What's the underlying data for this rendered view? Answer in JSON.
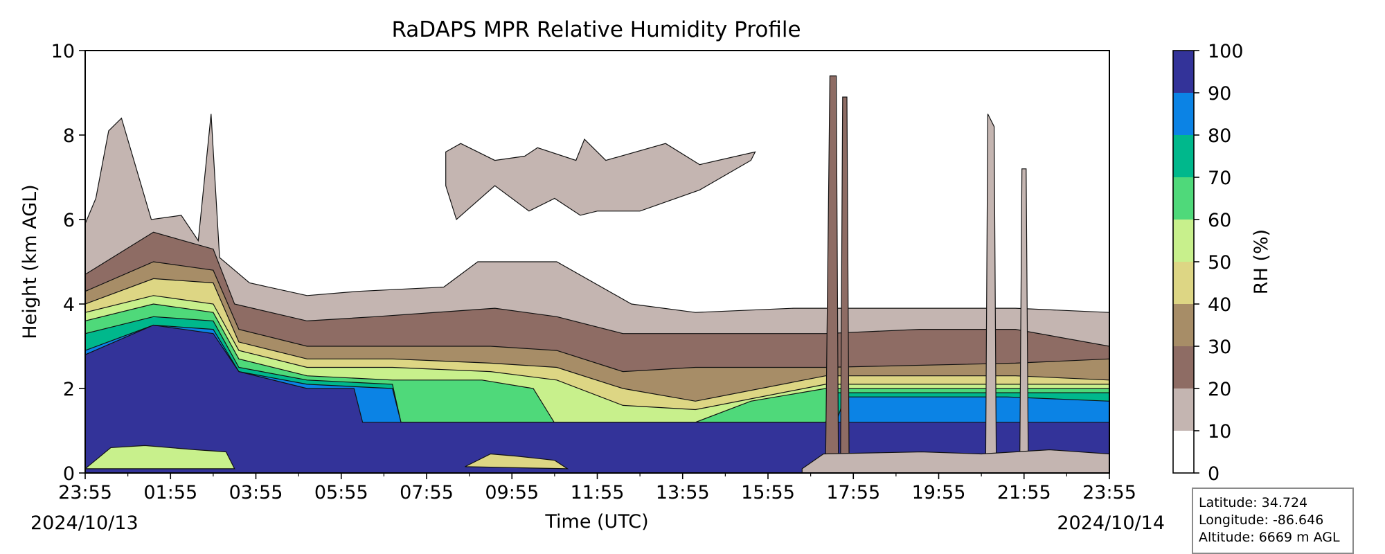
{
  "chart_data": {
    "type": "contour",
    "title": "RaDAPS MPR Relative Humidity Profile",
    "xlabel": "Time (UTC)",
    "ylabel": "Height (km AGL)",
    "x_ticks": [
      "23:55",
      "01:55",
      "03:55",
      "05:55",
      "07:55",
      "09:55",
      "11:55",
      "13:55",
      "15:55",
      "17:55",
      "19:55",
      "21:55",
      "23:55"
    ],
    "start_date": "2024/10/13",
    "end_date": "2024/10/14",
    "y_ticks": [
      "0",
      "2",
      "4",
      "6",
      "8",
      "10"
    ],
    "ylim": [
      0,
      10
    ],
    "colorbar": {
      "label": "RH (%)",
      "ticks": [
        "0",
        "10",
        "20",
        "30",
        "40",
        "50",
        "60",
        "70",
        "80",
        "90",
        "100"
      ],
      "levels": [
        0,
        10,
        20,
        30,
        40,
        50,
        60,
        70,
        80,
        90,
        100
      ],
      "colors": [
        "#ffffff",
        "#c4b5b1",
        "#8e6c64",
        "#a78d67",
        "#ddd684",
        "#c8f08c",
        "#4fd97a",
        "#00b88c",
        "#0b83e5",
        "#333399"
      ]
    },
    "contour_profiles": [
      {
        "min_rh": 10,
        "color": "#c4b5b1",
        "top_km": [
          [
            0,
            5.9
          ],
          [
            0.25,
            6.5
          ],
          [
            0.55,
            8.1
          ],
          [
            0.85,
            8.4
          ],
          [
            1.55,
            6.0
          ],
          [
            2.25,
            6.1
          ],
          [
            2.65,
            5.5
          ],
          [
            2.95,
            8.5
          ],
          [
            3.15,
            5.1
          ],
          [
            3.85,
            4.5
          ],
          [
            5.2,
            4.2
          ],
          [
            6.4,
            4.3
          ],
          [
            8.4,
            4.4
          ],
          [
            9.2,
            5.0
          ],
          [
            11.05,
            5.0
          ],
          [
            12.8,
            4.0
          ],
          [
            14.3,
            3.8
          ],
          [
            16.6,
            3.9
          ],
          [
            17.35,
            3.9
          ],
          [
            21.8,
            3.9
          ],
          [
            24,
            3.8
          ]
        ]
      },
      {
        "min_rh": 20,
        "color": "#8e6c64",
        "top_km": [
          [
            0,
            4.7
          ],
          [
            1.6,
            5.7
          ],
          [
            3.0,
            5.3
          ],
          [
            3.5,
            4.0
          ],
          [
            5.2,
            3.6
          ],
          [
            6.8,
            3.7
          ],
          [
            9.6,
            3.9
          ],
          [
            11.05,
            3.7
          ],
          [
            12.6,
            3.3
          ],
          [
            14.3,
            3.3
          ],
          [
            17.35,
            3.3
          ],
          [
            19.55,
            3.4
          ],
          [
            21.8,
            3.4
          ],
          [
            24,
            3.0
          ]
        ]
      },
      {
        "min_rh": 30,
        "color": "#a78d67",
        "top_km": [
          [
            0,
            4.3
          ],
          [
            1.6,
            5.0
          ],
          [
            3.0,
            4.8
          ],
          [
            3.6,
            3.4
          ],
          [
            5.2,
            3.0
          ],
          [
            7.2,
            3.0
          ],
          [
            9.5,
            3.0
          ],
          [
            11.05,
            2.9
          ],
          [
            12.6,
            2.4
          ],
          [
            14.3,
            2.5
          ],
          [
            17.35,
            2.5
          ],
          [
            21.8,
            2.6
          ],
          [
            24,
            2.7
          ]
        ]
      },
      {
        "min_rh": 40,
        "color": "#ddd684",
        "top_km": [
          [
            0,
            4.0
          ],
          [
            1.6,
            4.6
          ],
          [
            3.0,
            4.5
          ],
          [
            3.6,
            3.1
          ],
          [
            5.2,
            2.7
          ],
          [
            7.2,
            2.7
          ],
          [
            9.5,
            2.6
          ],
          [
            11.05,
            2.5
          ],
          [
            12.6,
            2.0
          ],
          [
            14.3,
            1.7
          ],
          [
            17.35,
            2.3
          ],
          [
            21.8,
            2.3
          ],
          [
            24,
            2.2
          ]
        ]
      },
      {
        "min_rh": 50,
        "color": "#c8f08c",
        "top_km": [
          [
            0,
            3.8
          ],
          [
            1.6,
            4.2
          ],
          [
            3.0,
            4.0
          ],
          [
            3.6,
            2.9
          ],
          [
            5.2,
            2.5
          ],
          [
            7.2,
            2.5
          ],
          [
            9.5,
            2.4
          ],
          [
            11.05,
            2.2
          ],
          [
            12.6,
            1.6
          ],
          [
            14.3,
            1.5
          ],
          [
            17.35,
            2.1
          ],
          [
            21.8,
            2.1
          ],
          [
            24,
            2.1
          ]
        ]
      },
      {
        "min_rh": 60,
        "color": "#4fd97a",
        "top_km": [
          [
            0,
            3.6
          ],
          [
            1.6,
            4.0
          ],
          [
            3.0,
            3.8
          ],
          [
            3.6,
            2.7
          ],
          [
            5.2,
            2.3
          ],
          [
            7.2,
            2.2
          ],
          [
            9.3,
            2.2
          ],
          [
            10.5,
            2.0
          ],
          [
            11.05,
            1.1
          ],
          [
            14.3,
            1.2
          ],
          [
            15.6,
            1.7
          ],
          [
            17.35,
            2.0
          ],
          [
            21.8,
            2.0
          ],
          [
            24,
            2.0
          ]
        ]
      },
      {
        "min_rh": 70,
        "color": "#00b88c",
        "top_km": [
          [
            0,
            3.3
          ],
          [
            1.6,
            3.7
          ],
          [
            3.0,
            3.6
          ],
          [
            3.6,
            2.5
          ],
          [
            5.2,
            2.2
          ],
          [
            7.2,
            2.1
          ],
          [
            7.4,
            1.2
          ],
          [
            17.35,
            1.2
          ],
          [
            17.6,
            1.9
          ],
          [
            21.8,
            1.9
          ],
          [
            24,
            1.9
          ]
        ]
      },
      {
        "min_rh": 80,
        "color": "#0b83e5",
        "top_km": [
          [
            0,
            2.9
          ],
          [
            1.6,
            3.5
          ],
          [
            3.0,
            3.4
          ],
          [
            3.6,
            2.4
          ],
          [
            5.2,
            2.1
          ],
          [
            7.2,
            2.0
          ],
          [
            7.4,
            1.2
          ],
          [
            17.6,
            1.2
          ],
          [
            17.8,
            1.8
          ],
          [
            21.6,
            1.8
          ],
          [
            24,
            1.7
          ]
        ]
      },
      {
        "min_rh": 90,
        "color": "#333399",
        "top_km": [
          [
            0,
            2.8
          ],
          [
            1.6,
            3.5
          ],
          [
            3.0,
            3.3
          ],
          [
            3.6,
            2.4
          ],
          [
            5.2,
            2.0
          ],
          [
            6.3,
            2.0
          ],
          [
            6.5,
            1.2
          ],
          [
            24,
            1.2
          ]
        ]
      }
    ]
  },
  "info_box": {
    "latitude": "Latitude: 34.724",
    "longitude": "Longitude: -86.646",
    "altitude": "Altitude: 6669 m AGL"
  }
}
